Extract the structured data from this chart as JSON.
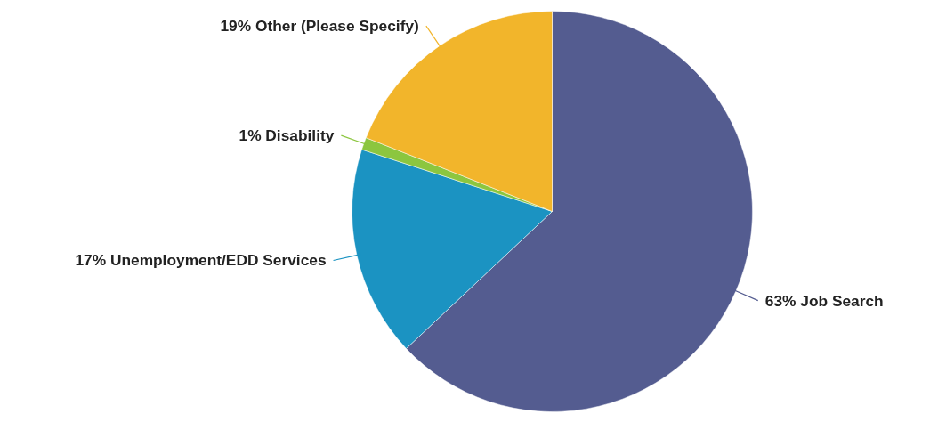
{
  "chart_data": {
    "type": "pie",
    "categories": [
      "Job Search",
      "Unemployment/EDD Services",
      "Disability",
      "Other (Please Specify)"
    ],
    "values": [
      63,
      17,
      1,
      19
    ],
    "value_labels": [
      "63%",
      "17%",
      "1%",
      "19%"
    ],
    "colors": [
      "#545c90",
      "#1b93c2",
      "#8cc63f",
      "#f2b52b"
    ]
  }
}
